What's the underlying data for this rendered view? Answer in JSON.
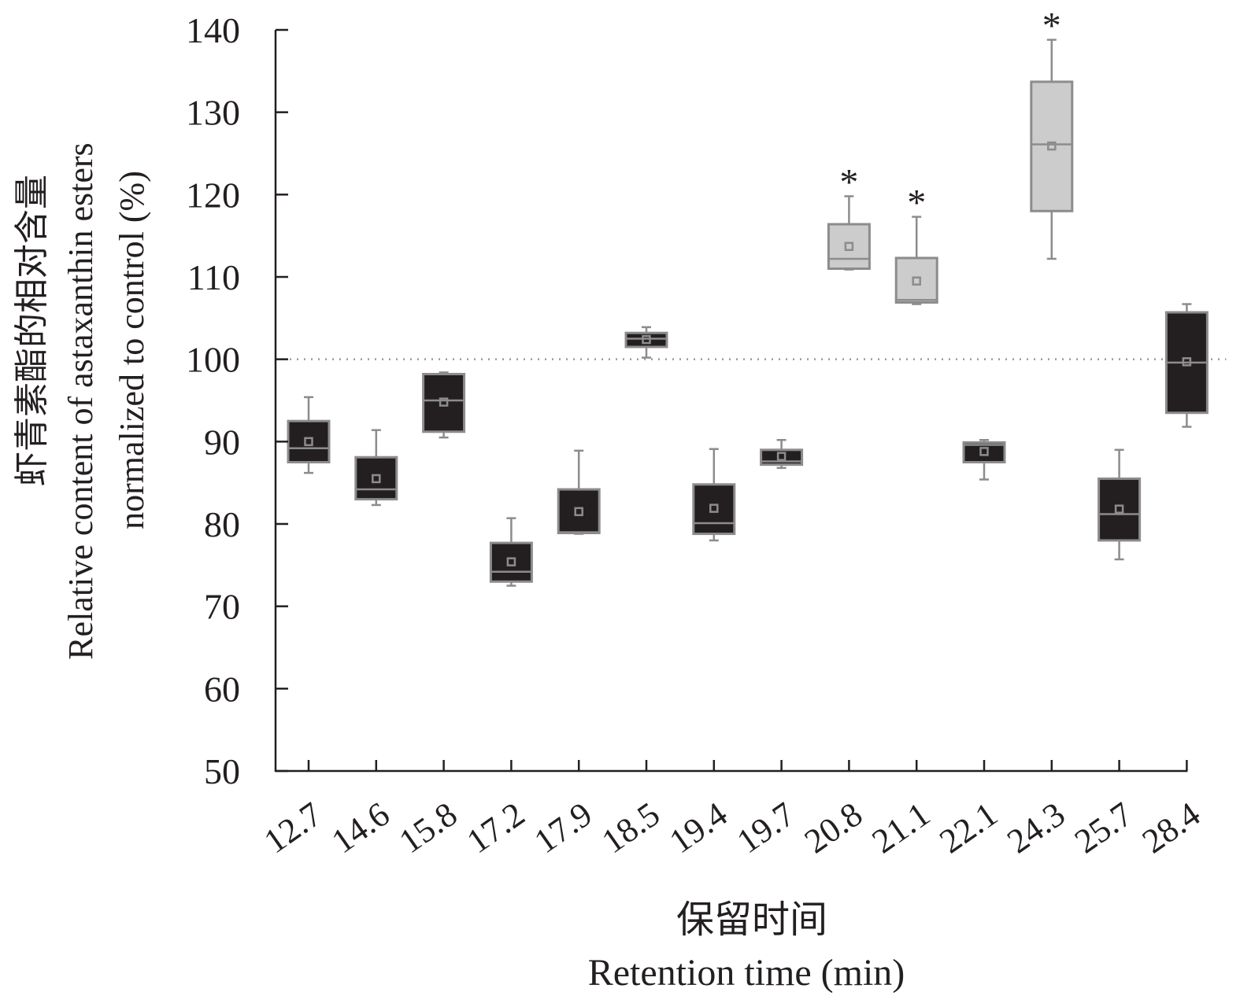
{
  "chart_data": {
    "type": "box",
    "title": "",
    "xlabel_cn": "保留时间",
    "xlabel": "Retention time (min)",
    "ylabel_cn": "虾青素酯的相对含量",
    "ylabel_line1": "Relative content of astaxanthin esters",
    "ylabel_line2": "normalized to control (%)",
    "ylim": [
      50,
      140
    ],
    "yticks": [
      50,
      60,
      70,
      80,
      90,
      100,
      110,
      120,
      130,
      140
    ],
    "reference_line": 100,
    "categories": [
      "12.7",
      "14.6",
      "15.8",
      "17.2",
      "17.9",
      "18.5",
      "19.4",
      "19.7",
      "20.8",
      "21.1",
      "22.1",
      "24.3",
      "25.7",
      "28.4"
    ],
    "boxes": [
      {
        "min": 86.2,
        "q1": 87.5,
        "median": 89.2,
        "mean": 90.0,
        "q3": 92.5,
        "max": 95.4,
        "significant": false
      },
      {
        "min": 82.3,
        "q1": 83.0,
        "median": 84.2,
        "mean": 85.5,
        "q3": 88.1,
        "max": 91.4,
        "significant": false
      },
      {
        "min": 90.5,
        "q1": 91.2,
        "median": 95.0,
        "mean": 94.8,
        "q3": 98.2,
        "max": 98.4,
        "significant": false
      },
      {
        "min": 72.5,
        "q1": 73.0,
        "median": 74.2,
        "mean": 75.4,
        "q3": 77.7,
        "max": 80.7,
        "significant": false
      },
      {
        "min": 78.8,
        "q1": 78.9,
        "median": 79.0,
        "mean": 81.5,
        "q3": 84.2,
        "max": 88.9,
        "significant": false
      },
      {
        "min": 100.2,
        "q1": 101.5,
        "median": 102.5,
        "mean": 102.4,
        "q3": 103.2,
        "max": 103.9,
        "significant": false
      },
      {
        "min": 78.0,
        "q1": 78.8,
        "median": 80.1,
        "mean": 81.9,
        "q3": 84.8,
        "max": 89.1,
        "significant": false
      },
      {
        "min": 86.8,
        "q1": 87.2,
        "median": 87.6,
        "mean": 88.2,
        "q3": 89.0,
        "max": 90.2,
        "significant": false
      },
      {
        "min": 110.9,
        "q1": 111.0,
        "median": 112.2,
        "mean": 113.7,
        "q3": 116.4,
        "max": 119.8,
        "significant": true
      },
      {
        "min": 106.7,
        "q1": 106.9,
        "median": 107.2,
        "mean": 109.5,
        "q3": 112.3,
        "max": 117.3,
        "significant": true
      },
      {
        "min": 85.4,
        "q1": 87.5,
        "median": 89.6,
        "mean": 88.8,
        "q3": 89.9,
        "max": 90.2,
        "significant": false
      },
      {
        "min": 112.2,
        "q1": 118.0,
        "median": 126.1,
        "mean": 125.9,
        "q3": 133.7,
        "max": 138.8,
        "significant": true
      },
      {
        "min": 75.7,
        "q1": 78.0,
        "median": 81.2,
        "mean": 81.8,
        "q3": 85.5,
        "max": 89.0,
        "significant": false
      },
      {
        "min": 91.8,
        "q1": 93.5,
        "median": 99.6,
        "mean": 99.7,
        "q3": 105.7,
        "max": 106.7,
        "significant": false
      }
    ],
    "significance_marker": "*",
    "colors": {
      "box_normal": "#231f20",
      "box_significant": "#cccccc",
      "stroke": "#8c8c8c",
      "axis": "#231f20"
    }
  }
}
